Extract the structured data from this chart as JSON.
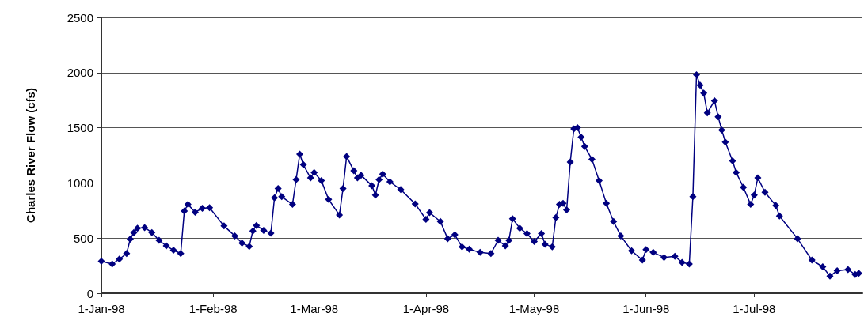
{
  "chart_data": {
    "type": "line",
    "ylabel": "Charles River Flow (cfs)",
    "color": "#000080",
    "marker": "diamond",
    "grid": "y",
    "ylim": [
      0,
      2500
    ],
    "yticks": [
      0,
      500,
      1000,
      1500,
      2000,
      2500
    ],
    "xlim": [
      "1998-01-01",
      "1998-07-31"
    ],
    "xticks": [
      {
        "value": "1998-01-01",
        "label": "1-Jan-98"
      },
      {
        "value": "1998-02-01",
        "label": "1-Feb-98"
      },
      {
        "value": "1998-03-01",
        "label": "1-Mar-98"
      },
      {
        "value": "1998-04-01",
        "label": "1-Apr-98"
      },
      {
        "value": "1998-05-01",
        "label": "1-May-98"
      },
      {
        "value": "1998-06-01",
        "label": "1-Jun-98"
      },
      {
        "value": "1998-07-01",
        "label": "1-Jul-98"
      }
    ],
    "x": [
      "1998-01-01",
      "1998-01-04",
      "1998-01-06",
      "1998-01-08",
      "1998-01-09",
      "1998-01-10",
      "1998-01-11",
      "1998-01-13",
      "1998-01-15",
      "1998-01-17",
      "1998-01-19",
      "1998-01-21",
      "1998-01-23",
      "1998-01-24",
      "1998-01-25",
      "1998-01-27",
      "1998-01-29",
      "1998-01-31",
      "1998-02-04",
      "1998-02-07",
      "1998-02-09",
      "1998-02-11",
      "1998-02-12",
      "1998-02-13",
      "1998-02-15",
      "1998-02-17",
      "1998-02-18",
      "1998-02-19",
      "1998-02-20",
      "1998-02-23",
      "1998-02-24",
      "1998-02-25",
      "1998-02-26",
      "1998-02-28",
      "1998-03-01",
      "1998-03-03",
      "1998-03-05",
      "1998-03-08",
      "1998-03-09",
      "1998-03-10",
      "1998-03-12",
      "1998-03-13",
      "1998-03-14",
      "1998-03-17",
      "1998-03-18",
      "1998-03-19",
      "1998-03-20",
      "1998-03-22",
      "1998-03-25",
      "1998-03-29",
      "1998-04-01",
      "1998-04-02",
      "1998-04-05",
      "1998-04-07",
      "1998-04-09",
      "1998-04-11",
      "1998-04-13",
      "1998-04-16",
      "1998-04-19",
      "1998-04-21",
      "1998-04-23",
      "1998-04-24",
      "1998-04-25",
      "1998-04-27",
      "1998-04-29",
      "1998-05-01",
      "1998-05-03",
      "1998-05-04",
      "1998-05-06",
      "1998-05-07",
      "1998-05-08",
      "1998-05-09",
      "1998-05-10",
      "1998-05-11",
      "1998-05-12",
      "1998-05-13",
      "1998-05-14",
      "1998-05-15",
      "1998-05-17",
      "1998-05-19",
      "1998-05-21",
      "1998-05-23",
      "1998-05-25",
      "1998-05-28",
      "1998-05-31",
      "1998-06-01",
      "1998-06-03",
      "1998-06-06",
      "1998-06-09",
      "1998-06-11",
      "1998-06-13",
      "1998-06-14",
      "1998-06-15",
      "1998-06-16",
      "1998-06-17",
      "1998-06-18",
      "1998-06-20",
      "1998-06-21",
      "1998-06-22",
      "1998-06-23",
      "1998-06-25",
      "1998-06-26",
      "1998-06-28",
      "1998-06-30",
      "1998-07-01",
      "1998-07-02",
      "1998-07-04",
      "1998-07-07",
      "1998-07-08",
      "1998-07-13",
      "1998-07-17",
      "1998-07-20",
      "1998-07-22",
      "1998-07-24",
      "1998-07-27",
      "1998-07-29",
      "1998-07-30"
    ],
    "values": [
      290,
      265,
      310,
      360,
      490,
      550,
      590,
      595,
      550,
      480,
      430,
      390,
      360,
      745,
      805,
      735,
      770,
      775,
      610,
      520,
      455,
      425,
      565,
      615,
      570,
      545,
      865,
      950,
      875,
      805,
      1030,
      1260,
      1165,
      1045,
      1095,
      1020,
      850,
      710,
      950,
      1240,
      1110,
      1045,
      1070,
      975,
      890,
      1030,
      1080,
      1010,
      940,
      810,
      670,
      730,
      650,
      495,
      530,
      420,
      400,
      370,
      360,
      480,
      430,
      480,
      675,
      590,
      540,
      470,
      540,
      445,
      420,
      685,
      805,
      815,
      755,
      1190,
      1490,
      1500,
      1415,
      1330,
      1215,
      1020,
      815,
      650,
      520,
      385,
      300,
      395,
      370,
      325,
      335,
      280,
      265,
      875,
      1980,
      1885,
      1815,
      1635,
      1745,
      1600,
      1480,
      1370,
      1200,
      1095,
      960,
      805,
      890,
      1045,
      915,
      795,
      700,
      495,
      300,
      240,
      155,
      205,
      215,
      170,
      180
    ]
  }
}
